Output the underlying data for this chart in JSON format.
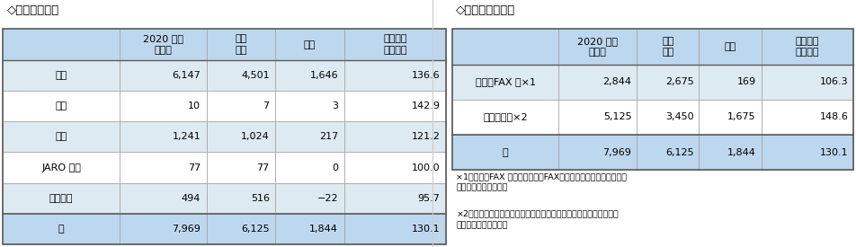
{
  "table1_title": "◇相談内訳件数",
  "table1_headers": [
    "",
    "2020 年度\n上半期",
    "前年\n同期",
    "増減",
    "前年同期\n比（％）"
  ],
  "table1_rows": [
    [
      "苦情",
      "6,147",
      "4,501",
      "1,646",
      "136.6"
    ],
    [
      "称賛",
      "10",
      "7",
      "3",
      "142.9"
    ],
    [
      "照会",
      "1,241",
      "1,024",
      "217",
      "121.2"
    ],
    [
      "JARO 関連",
      "77",
      "77",
      "0",
      "100.0"
    ],
    [
      "広告以外",
      "494",
      "516",
      "−22",
      "95.7"
    ],
    [
      "計",
      "7,969",
      "6,125",
      "1,844",
      "130.1"
    ]
  ],
  "table1_total_row": 5,
  "table2_title": "◇受付経路別件数",
  "table2_headers": [
    "",
    "2020 年度\n上半期",
    "前年\n同期",
    "増減",
    "前年同期\n比（％）"
  ],
  "table2_rows": [
    [
      "電話・FAX 等×1",
      "2,844",
      "2,675",
      "169",
      "106.3"
    ],
    [
      "オンライン×2",
      "5,125",
      "3,450",
      "1,675",
      "148.6"
    ],
    [
      "計",
      "7,969",
      "6,125",
      "1,844",
      "130.1"
    ]
  ],
  "table2_total_row": 2,
  "table2_note1": "×1「電話・FAX 等」とは電話・FAX・郵便により受け付けたもの\n　（「照会」含む）。",
  "table2_note2": "×2「オンライン」とはウェブサイト上の送信フォーム「広告みんな\n　の声」経由のもの。",
  "header_bg": "#BDD7EE",
  "row_bg_light": "#DEEAF1",
  "row_bg_white": "#FFFFFF",
  "total_bg": "#BDD7EE",
  "border_color_dark": "#5A5A5A",
  "border_color_light": "#A0A0A0",
  "bg_color": "#FFFFFF",
  "font_size": 8.0,
  "header_font_size": 8.0,
  "title_font_size": 9.5,
  "note_font_size": 6.8
}
